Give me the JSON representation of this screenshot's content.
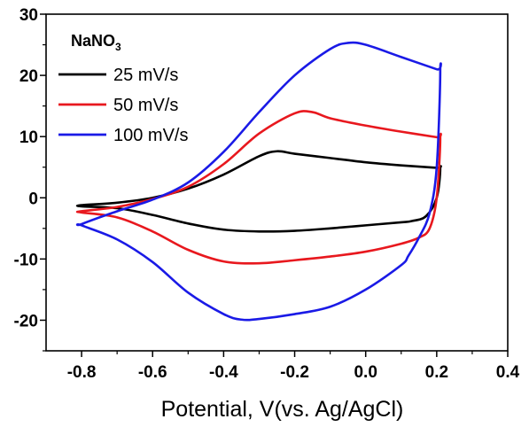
{
  "chart_data": {
    "type": "line",
    "title": "",
    "xlabel": "Potential, V(vs. Ag/AgCl)",
    "ylabel": "",
    "xlim": [
      -0.9,
      0.4
    ],
    "ylim": [
      -25,
      30
    ],
    "xticks": [
      -0.8,
      -0.6,
      -0.4,
      -0.2,
      0.0,
      0.2,
      0.4
    ],
    "xtick_labels": [
      "-0.8",
      "-0.6",
      "-0.4",
      "-0.2",
      "0.0",
      "0.2",
      "0.4"
    ],
    "yticks": [
      -20,
      -10,
      0,
      10,
      20,
      30
    ],
    "ytick_labels": [
      "-20",
      "-10",
      "0",
      "10",
      "20",
      "30"
    ],
    "grid": false,
    "legend_position": "top-left",
    "legend_title": {
      "main": "NaNO",
      "subscript": "3"
    },
    "series": [
      {
        "name": "25 mV/s",
        "color": "#000000",
        "x": [
          -0.8,
          -0.7,
          -0.6,
          -0.5,
          -0.4,
          -0.3,
          -0.25,
          -0.2,
          -0.1,
          0.0,
          0.1,
          0.2,
          0.21,
          0.2,
          0.17,
          0.13,
          0.1,
          0.0,
          -0.1,
          -0.2,
          -0.3,
          -0.4,
          -0.5,
          -0.6,
          -0.7,
          -0.8
        ],
        "y": [
          -1.2,
          -0.8,
          0.0,
          1.5,
          3.8,
          6.8,
          7.6,
          7.2,
          6.5,
          5.8,
          5.3,
          4.9,
          4.8,
          0.0,
          -3.0,
          -3.8,
          -4.0,
          -4.5,
          -5.0,
          -5.4,
          -5.5,
          -5.2,
          -4.2,
          -2.8,
          -1.7,
          -1.4
        ]
      },
      {
        "name": "50 mV/s",
        "color": "#e8181e",
        "x": [
          -0.8,
          -0.7,
          -0.6,
          -0.5,
          -0.4,
          -0.3,
          -0.2,
          -0.15,
          -0.1,
          0.0,
          0.1,
          0.2,
          0.21,
          0.2,
          0.18,
          0.15,
          0.1,
          0.0,
          -0.1,
          -0.2,
          -0.3,
          -0.4,
          -0.5,
          -0.6,
          -0.7,
          -0.8
        ],
        "y": [
          -2.2,
          -1.5,
          -0.2,
          1.8,
          5.5,
          10.5,
          13.8,
          14.0,
          13.0,
          11.8,
          10.8,
          9.9,
          9.7,
          0.0,
          -5.0,
          -6.5,
          -7.5,
          -8.8,
          -9.6,
          -10.2,
          -10.7,
          -10.4,
          -8.5,
          -5.5,
          -3.2,
          -2.4
        ]
      },
      {
        "name": "100 mV/s",
        "color": "#1a1ae6",
        "x": [
          -0.8,
          -0.7,
          -0.6,
          -0.5,
          -0.4,
          -0.3,
          -0.2,
          -0.1,
          -0.05,
          0.0,
          0.1,
          0.2,
          0.21,
          0.2,
          0.18,
          0.15,
          0.12,
          0.1,
          0.0,
          -0.1,
          -0.2,
          -0.3,
          -0.35,
          -0.4,
          -0.5,
          -0.6,
          -0.7,
          -0.8
        ],
        "y": [
          -4.3,
          -2.2,
          -0.3,
          2.5,
          7.5,
          14.0,
          20.0,
          24.3,
          25.3,
          25.0,
          23.0,
          21.0,
          20.8,
          5.0,
          -2.5,
          -6.5,
          -9.5,
          -11.0,
          -15.0,
          -17.8,
          -19.0,
          -19.8,
          -19.9,
          -19.0,
          -15.5,
          -10.5,
          -6.8,
          -4.5
        ]
      }
    ]
  }
}
